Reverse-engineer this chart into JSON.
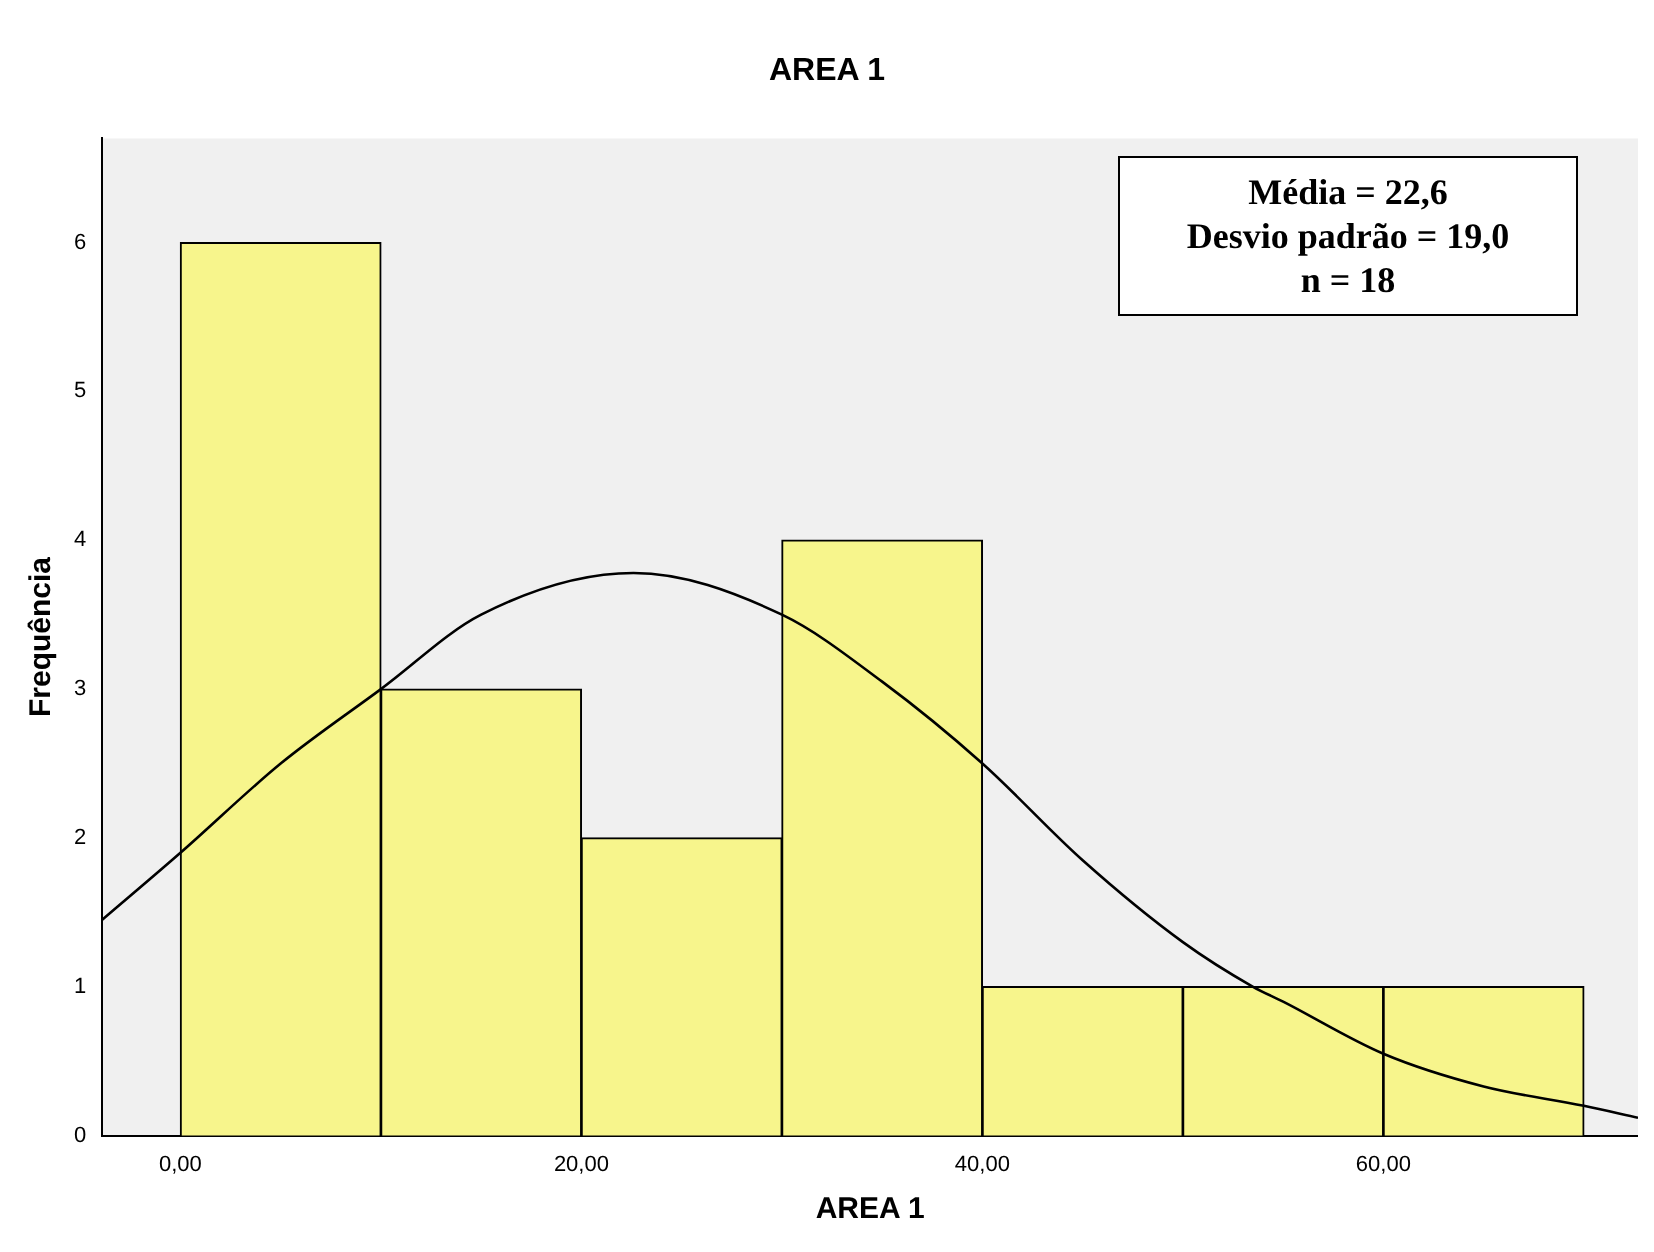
{
  "chart_data": {
    "type": "histogram",
    "title": "AREA 1",
    "xlabel": "AREA 1",
    "ylabel": "Frequência",
    "bins": [
      0,
      10,
      20,
      30,
      40,
      50,
      60,
      70
    ],
    "values": [
      6,
      3,
      2,
      4,
      1,
      1,
      1
    ],
    "color": "#f7f58c",
    "series": [
      {
        "type": "line",
        "color": "#000000",
        "x": [
          -3.9,
          0,
          5,
          10,
          15,
          22.6,
          30,
          35,
          40,
          45,
          50,
          53.5,
          55,
          60,
          65,
          70,
          72.7
        ],
        "values": [
          1.45,
          1.9,
          2.5,
          3.0,
          3.5,
          3.78,
          3.5,
          3.05,
          2.5,
          1.85,
          1.3,
          1.0,
          0.9,
          0.55,
          0.33,
          0.2,
          0.12
        ]
      }
    ],
    "xlim": [
      -3.9,
      72.7
    ],
    "ylim": [
      0,
      6.7
    ],
    "xticks": [
      {
        "value": 0,
        "label": "0,00"
      },
      {
        "value": 20,
        "label": "20,00"
      },
      {
        "value": 40,
        "label": "40,00"
      },
      {
        "value": 60,
        "label": "60,00"
      }
    ],
    "yticks": [
      0,
      1,
      2,
      3,
      4,
      5,
      6
    ],
    "annotations": [
      "Média = 22,6",
      "Desvio padrão = 19,0",
      "n = 18"
    ],
    "grid": false,
    "legend": false,
    "marker": "none",
    "line_style": "solid"
  }
}
